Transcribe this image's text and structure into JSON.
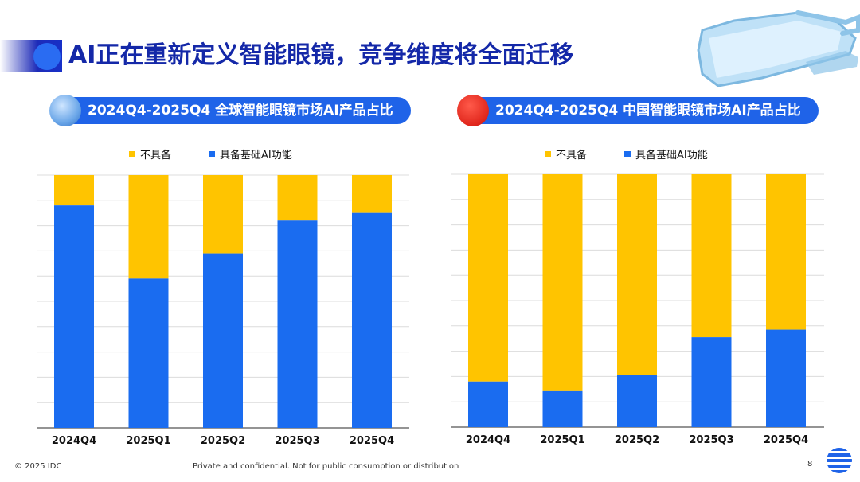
{
  "title": "AI正在重新定义智能眼镜，竞争维度将全面迁移",
  "colors": {
    "ai": "#1a6cf0",
    "no": "#ffc400",
    "accent": "#1f63e8",
    "title": "#1428a8"
  },
  "footer": {
    "copyright": "© 2025 IDC",
    "confidential": "Private and confidential. Not for public consumption or distribution",
    "page": "8"
  },
  "chart_data": [
    {
      "type": "bar",
      "stacked": true,
      "percent": true,
      "title": "2024Q4-2025Q4 全球智能眼镜市场AI产品占比",
      "categories": [
        "2024Q4",
        "2025Q1",
        "2025Q2",
        "2025Q3",
        "2025Q4"
      ],
      "series": [
        {
          "name": "具备基础AI功能",
          "color": "#1a6cf0",
          "values": [
            0.88,
            0.59,
            0.69,
            0.82,
            0.85
          ]
        },
        {
          "name": "不具备",
          "color": "#ffc400",
          "values": [
            0.12,
            0.41,
            0.31,
            0.18,
            0.15
          ]
        }
      ],
      "legend": [
        "不具备",
        "具备基础AI功能"
      ],
      "ylim": [
        0,
        1
      ],
      "grid": true,
      "xlabel": "",
      "ylabel": ""
    },
    {
      "type": "bar",
      "stacked": true,
      "percent": true,
      "title": "2024Q4-2025Q4 中国智能眼镜市场AI产品占比",
      "categories": [
        "2024Q4",
        "2025Q1",
        "2025Q2",
        "2025Q3",
        "2025Q4"
      ],
      "series": [
        {
          "name": "具备基础AI功能",
          "color": "#1a6cf0",
          "values": [
            0.18,
            0.145,
            0.205,
            0.355,
            0.385
          ]
        },
        {
          "name": "不具备",
          "color": "#ffc400",
          "values": [
            0.82,
            0.855,
            0.795,
            0.645,
            0.615
          ]
        }
      ],
      "legend": [
        "不具备",
        "具备基础AI功能"
      ],
      "ylim": [
        0,
        1
      ],
      "grid": true,
      "xlabel": "",
      "ylabel": ""
    }
  ]
}
